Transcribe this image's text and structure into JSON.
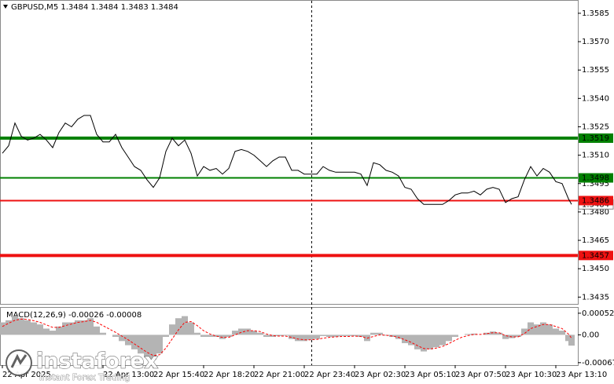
{
  "chart_data": [
    {
      "type": "line",
      "title": "GBPUSD,M5  1.3484 1.3484 1.3483 1.3484",
      "x": [
        0,
        4,
        8,
        12,
        16,
        20,
        24,
        28,
        32,
        36,
        40,
        44,
        48,
        52,
        56,
        60,
        64,
        68,
        72,
        76,
        80,
        84,
        88,
        92,
        96,
        100,
        104,
        108,
        112,
        116,
        120,
        124,
        128,
        132,
        136,
        140,
        144,
        148,
        152,
        156,
        160,
        164,
        168,
        172,
        176,
        180,
        184,
        188,
        192,
        196,
        200,
        204,
        208,
        212,
        216,
        220,
        224,
        228,
        232,
        236,
        240,
        244,
        248,
        252,
        256,
        260,
        264,
        268,
        272,
        276,
        280,
        284,
        288,
        292,
        296,
        300,
        304,
        308,
        312,
        316,
        320,
        324,
        328,
        332,
        336,
        340,
        344,
        348,
        352,
        356,
        360,
        362
      ],
      "series": [
        {
          "color": "#000000",
          "values": [
            1.3511,
            1.3515,
            1.3527,
            1.352,
            1.3518,
            1.3519,
            1.3521,
            1.3518,
            1.3514,
            1.3522,
            1.3527,
            1.3525,
            1.3529,
            1.3531,
            1.3531,
            1.3521,
            1.3517,
            1.3517,
            1.3521,
            1.3514,
            1.3509,
            1.3504,
            1.3502,
            1.3497,
            1.3493,
            1.3498,
            1.3512,
            1.3519,
            1.3515,
            1.3518,
            1.3511,
            1.3499,
            1.3504,
            1.3502,
            1.3503,
            1.35,
            1.3503,
            1.3512,
            1.3513,
            1.3512,
            1.351,
            1.3507,
            1.3504,
            1.3507,
            1.3509,
            1.3509,
            1.3502,
            1.3502,
            1.35,
            1.35,
            1.35,
            1.3504,
            1.3502,
            1.3501,
            1.3501,
            1.3501,
            1.3501,
            1.35,
            1.3494,
            1.3506,
            1.3505,
            1.3502,
            1.3501,
            1.3499,
            1.3493,
            1.3492,
            1.3487,
            1.3484,
            1.3484,
            1.3484,
            1.3484,
            1.3486,
            1.3489,
            1.349,
            1.349,
            1.3491,
            1.3489,
            1.3492,
            1.3493,
            1.3492,
            1.3485,
            1.3487,
            1.3488,
            1.3497,
            1.3504,
            1.3499,
            1.3503,
            1.3501,
            1.3496,
            1.3495,
            1.3487,
            1.3484
          ]
        }
      ],
      "xlim": [
        -1.5,
        366
      ],
      "ylim": [
        1.34314,
        1.35916
      ],
      "yticks": [
        1.3435,
        {
          "value": 1.345,
          "label": "1.3450"
        },
        1.3465,
        {
          "value": 1.348,
          "label": "1.3480"
        },
        1.3495,
        {
          "value": 1.351,
          "label": "1.3510"
        },
        1.3525,
        {
          "value": 1.354,
          "label": "1.3540"
        },
        1.3555,
        {
          "value": 1.357,
          "label": "1.3570"
        },
        1.3585
      ],
      "xticks": [
        {
          "value": 0,
          "label": "22 Apr 2025"
        },
        {
          "value": 64,
          "label": "22 Apr 13:00"
        },
        {
          "value": 96,
          "label": "22 Apr 15:40"
        },
        {
          "value": 128,
          "label": "22 Apr 18:20"
        },
        {
          "value": 160,
          "label": "22 Apr 21:00"
        },
        {
          "value": 192,
          "label": "22 Apr 23:40"
        },
        {
          "value": 224,
          "label": "23 Apr 02:30"
        },
        {
          "value": 256,
          "label": "23 Apr 05:10"
        },
        {
          "value": 288,
          "label": "23 Apr 07:50"
        },
        {
          "value": 320,
          "label": "23 Apr 10:30"
        },
        {
          "value": 352,
          "label": "23 Apr 13:10"
        }
      ],
      "last_price": 1.3484,
      "levels": [
        {
          "value": 1.3519,
          "color": "#008000",
          "bold": true
        },
        {
          "value": 1.3498,
          "color": "#008000",
          "bold": false
        },
        {
          "value": 1.3486,
          "color": "#ee1111",
          "bold": false
        },
        {
          "value": 1.3457,
          "color": "#ee1111",
          "bold": true
        }
      ],
      "grid": false
    },
    {
      "type": "macd",
      "title": "MACD(12,26,9) -0.00026 -0.00008",
      "x": [
        0,
        4,
        8,
        12,
        16,
        20,
        24,
        28,
        32,
        36,
        40,
        44,
        48,
        52,
        56,
        60,
        64,
        68,
        72,
        76,
        80,
        84,
        88,
        92,
        96,
        100,
        104,
        108,
        112,
        116,
        120,
        124,
        128,
        132,
        136,
        140,
        144,
        148,
        152,
        156,
        160,
        164,
        168,
        172,
        176,
        180,
        184,
        188,
        192,
        196,
        200,
        204,
        208,
        212,
        216,
        220,
        224,
        228,
        232,
        236,
        240,
        244,
        248,
        252,
        256,
        260,
        264,
        268,
        272,
        276,
        280,
        284,
        288,
        292,
        296,
        300,
        304,
        308,
        312,
        316,
        320,
        324,
        328,
        332,
        336,
        340,
        344,
        348,
        352,
        356,
        360,
        362
      ],
      "histogram": {
        "color": "#b4b4b4",
        "values": [
          0.0003,
          0.00035,
          0.00045,
          0.0004,
          0.00035,
          0.0003,
          0.00025,
          0.00015,
          0.0001,
          0.0002,
          0.0003,
          0.0003,
          0.00035,
          0.00035,
          0.0004,
          0.0002,
          5e-05,
          0,
          -5e-05,
          -0.00015,
          -0.00025,
          -0.00035,
          -0.00045,
          -0.00055,
          -0.0006,
          -0.00045,
          -5e-05,
          0.00025,
          0.0004,
          0.00045,
          0.0003,
          5e-05,
          -5e-05,
          -5e-05,
          -5e-05,
          -0.0001,
          -5e-05,
          0.0001,
          0.00015,
          0.00015,
          0.0001,
          5e-05,
          -5e-05,
          -5e-05,
          -3e-05,
          -2e-05,
          -0.0001,
          -0.00015,
          -0.00015,
          -0.00012,
          -0.0001,
          -3e-05,
          -5e-05,
          -5e-05,
          -3e-05,
          -3e-05,
          -3e-05,
          -5e-05,
          -0.00015,
          5e-05,
          5e-05,
          -2e-05,
          -5e-05,
          -0.0001,
          -0.0002,
          -0.00025,
          -0.00035,
          -0.0004,
          -0.00035,
          -0.0003,
          -0.00025,
          -0.00015,
          -5e-05,
          0,
          2e-05,
          3e-05,
          0,
          5e-05,
          8e-05,
          5e-05,
          -0.0001,
          -8e-05,
          -5e-05,
          0.00015,
          0.0003,
          0.00025,
          0.0003,
          0.00025,
          0.00015,
          0.0001,
          -0.00015,
          -0.00026
        ]
      },
      "signal": {
        "color": "#ff0000",
        "values": [
          0.0002,
          0.00028,
          0.00035,
          0.00038,
          0.00037,
          0.00034,
          0.0003,
          0.00024,
          0.00018,
          0.00018,
          0.00022,
          0.00026,
          0.0003,
          0.00032,
          0.00035,
          0.0003,
          0.00022,
          0.00014,
          6e-05,
          -3e-05,
          -0.00012,
          -0.00022,
          -0.00032,
          -0.00042,
          -0.0005,
          -0.00048,
          -0.00032,
          -0.0001,
          0.00012,
          0.0003,
          0.00032,
          0.00022,
          0.0001,
          2e-05,
          -3e-05,
          -6e-05,
          -6e-05,
          0,
          6e-05,
          0.0001,
          0.0001,
          8e-05,
          2e-05,
          -2e-05,
          -3e-05,
          -3e-05,
          -6e-05,
          -0.0001,
          -0.00012,
          -0.00012,
          -0.00011,
          -8e-05,
          -6e-05,
          -5e-05,
          -4e-05,
          -4e-05,
          -3e-05,
          -4e-05,
          -8e-05,
          -4e-05,
          0,
          -1e-05,
          -3e-05,
          -6e-05,
          -0.00012,
          -0.00018,
          -0.00026,
          -0.00033,
          -0.00034,
          -0.00032,
          -0.00028,
          -0.00021,
          -0.00013,
          -6e-05,
          -2e-05,
          1e-05,
          1e-05,
          3e-05,
          5e-05,
          5e-05,
          -2e-05,
          -5e-05,
          -5e-05,
          3e-05,
          0.00015,
          0.0002,
          0.00025,
          0.00025,
          0.0002,
          0.00015,
          2e-05,
          -8e-05
        ]
      },
      "xlim": [
        -1.5,
        366
      ],
      "ylim": [
        -0.00073,
        0.00065
      ],
      "yticks": [
        -0.00067,
        {
          "value": 0,
          "label": "0.00"
        },
        0.00052
      ]
    }
  ],
  "watermark": {
    "brand": "instaforex",
    "tagline": "Instant Forex Trading"
  }
}
